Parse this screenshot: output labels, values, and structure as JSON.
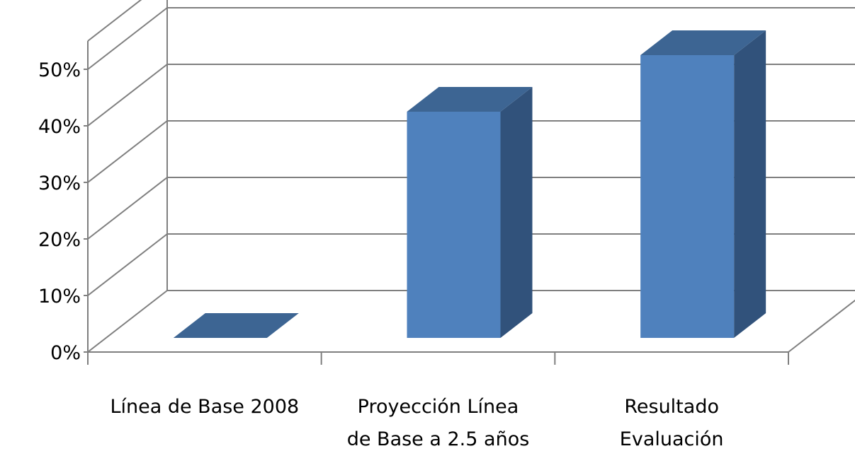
{
  "chart_data": {
    "type": "bar",
    "title": "",
    "xlabel": "",
    "ylabel": "",
    "categories": [
      [
        "Línea de Base 2008"
      ],
      [
        "Proyección Línea",
        "de Base a 2.5 años"
      ],
      [
        "Resultado",
        "Evaluación"
      ]
    ],
    "values": [
      0,
      40,
      50
    ],
    "ylim": [
      0,
      50
    ],
    "ytick_step": 10,
    "ytick_format": "percent",
    "grid": true,
    "legend": "none",
    "three_d": true,
    "colors": {
      "bar_front": "#4F81BD",
      "bar_top": "#3D6593",
      "bar_side": "#31527B",
      "grid": "#7F7F7F",
      "axis": "#7F7F7F"
    }
  }
}
